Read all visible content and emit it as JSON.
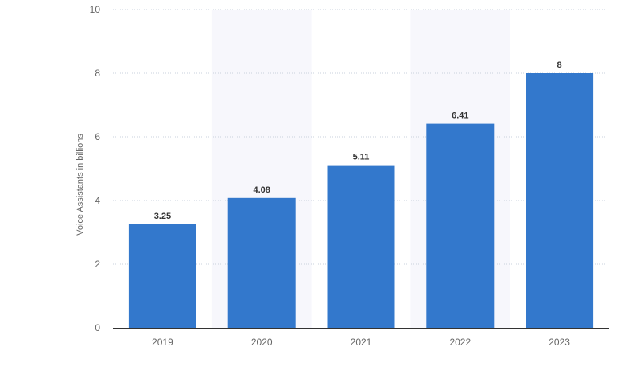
{
  "chart_data": {
    "type": "bar",
    "categories": [
      "2019",
      "2020",
      "2021",
      "2022",
      "2023"
    ],
    "series": [
      {
        "values": [
          3.25,
          4.08,
          5.11,
          6.41,
          8
        ]
      }
    ],
    "data_labels": [
      "3.25",
      "4.08",
      "5.11",
      "6.41",
      "8"
    ],
    "ylabel": "Voice Assistants in billions",
    "xlabel": "",
    "ylim": [
      0,
      10
    ],
    "yticks": [
      0,
      2,
      4,
      6,
      8,
      10
    ],
    "ytick_labels": [
      "0",
      "2",
      "4",
      "6",
      "8",
      "10"
    ],
    "grid": true,
    "legend": "none",
    "alternating_bands": true,
    "colors": {
      "bar": "#3378cc",
      "band": "#f7f7fc",
      "gridline": "#c8d0dc",
      "baseline": "#333333",
      "tick_text": "#666666",
      "label_text": "#333333"
    }
  }
}
